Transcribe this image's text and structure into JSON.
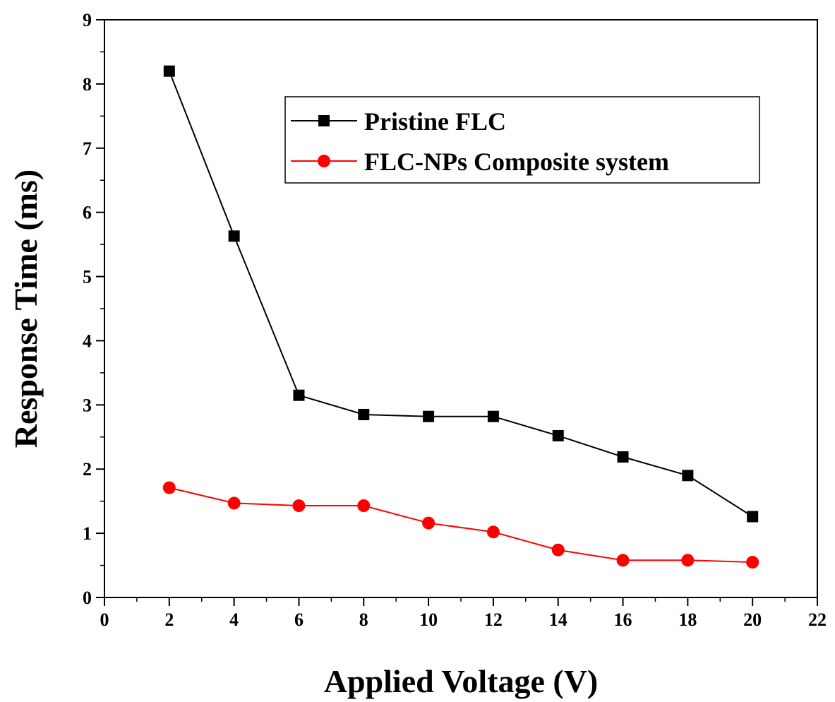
{
  "chart_data": {
    "type": "line",
    "title": "",
    "xlabel": "Applied Voltage (V)",
    "ylabel": "Response Time (ms)",
    "xlim": [
      0,
      22
    ],
    "ylim": [
      0,
      9
    ],
    "x_ticks": [
      "0",
      "2",
      "4",
      "6",
      "8",
      "10",
      "12",
      "14",
      "16",
      "18",
      "20",
      "22"
    ],
    "y_ticks": [
      "0",
      "1",
      "2",
      "3",
      "4",
      "5",
      "6",
      "7",
      "8",
      "9"
    ],
    "grid": false,
    "legend_position": "top-right",
    "x": [
      2,
      4,
      6,
      8,
      10,
      12,
      14,
      16,
      18,
      20
    ],
    "series": [
      {
        "name": "Pristine FLC",
        "color": "#000000",
        "marker": "square",
        "values": [
          8.2,
          5.63,
          3.15,
          2.85,
          2.82,
          2.82,
          2.52,
          2.19,
          1.9,
          1.26
        ]
      },
      {
        "name": "FLC-NPs Composite system",
        "color": "#ff0000",
        "marker": "circle",
        "values": [
          1.71,
          1.47,
          1.43,
          1.43,
          1.16,
          1.02,
          0.74,
          0.58,
          0.58,
          0.55
        ]
      }
    ]
  }
}
